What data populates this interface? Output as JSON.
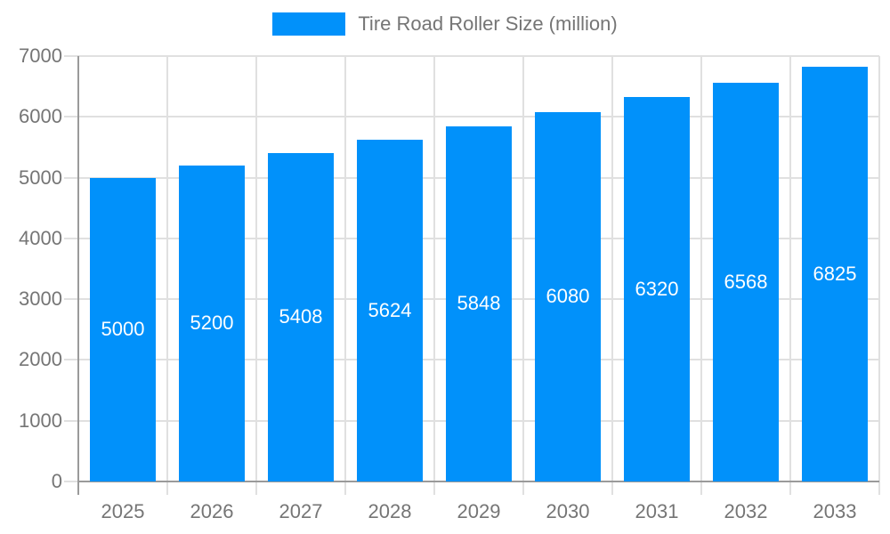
{
  "chart_data": {
    "type": "bar",
    "title": "Tire Road Roller Size (million)",
    "legend": {
      "position": "top",
      "label": "Tire Road Roller Size (million)"
    },
    "categories": [
      "2025",
      "2026",
      "2027",
      "2028",
      "2029",
      "2030",
      "2031",
      "2032",
      "2033"
    ],
    "series": [
      {
        "name": "Tire Road Roller Size (million)",
        "values": [
          5000,
          5200,
          5408,
          5624,
          5848,
          6080,
          6320,
          6568,
          6825
        ],
        "color": "#0191fa"
      }
    ],
    "ylim": [
      0,
      7000
    ],
    "yticks": [
      0,
      1000,
      2000,
      3000,
      4000,
      5000,
      6000,
      7000
    ],
    "grid": true,
    "data_labels": {
      "show": true,
      "position": "center",
      "color": "#ffffff"
    }
  },
  "colors": {
    "bar": "#0191fa",
    "grid": "#e0e0e0",
    "axis": "#9a9a9a",
    "tick_text": "#757575",
    "data_label": "#ffffff",
    "background": "#ffffff"
  }
}
